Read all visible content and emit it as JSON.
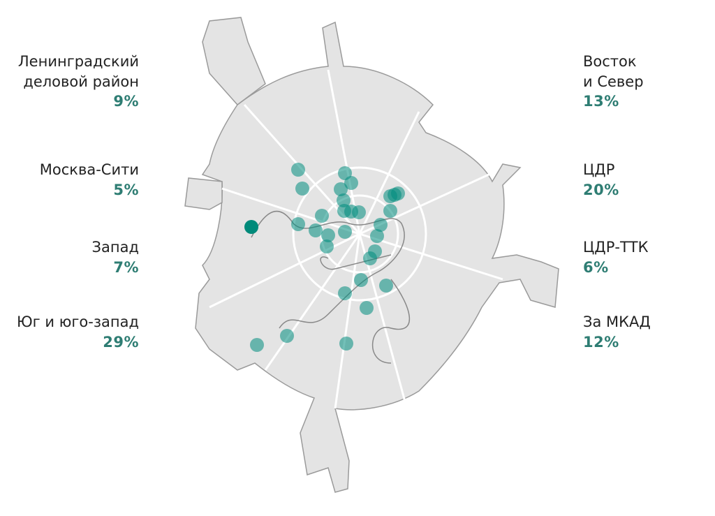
{
  "regions": {
    "left": [
      {
        "name_lines": [
          "Ленинградский",
          "деловой район"
        ],
        "share": "9%"
      },
      {
        "name_lines": [
          "Москва-Сити"
        ],
        "share": "5%"
      },
      {
        "name_lines": [
          "Запад"
        ],
        "share": "7%"
      },
      {
        "name_lines": [
          "Юг и юго-запад"
        ],
        "share": "29%"
      }
    ],
    "right": [
      {
        "name_lines": [
          "Восток",
          "и Север"
        ],
        "share": "13%"
      },
      {
        "name_lines": [
          "ЦДР"
        ],
        "share": "20%"
      },
      {
        "name_lines": [
          "ЦДР-ТТК"
        ],
        "share": "6%"
      },
      {
        "name_lines": [
          "За МКАД"
        ],
        "share": "12%"
      }
    ]
  }
}
